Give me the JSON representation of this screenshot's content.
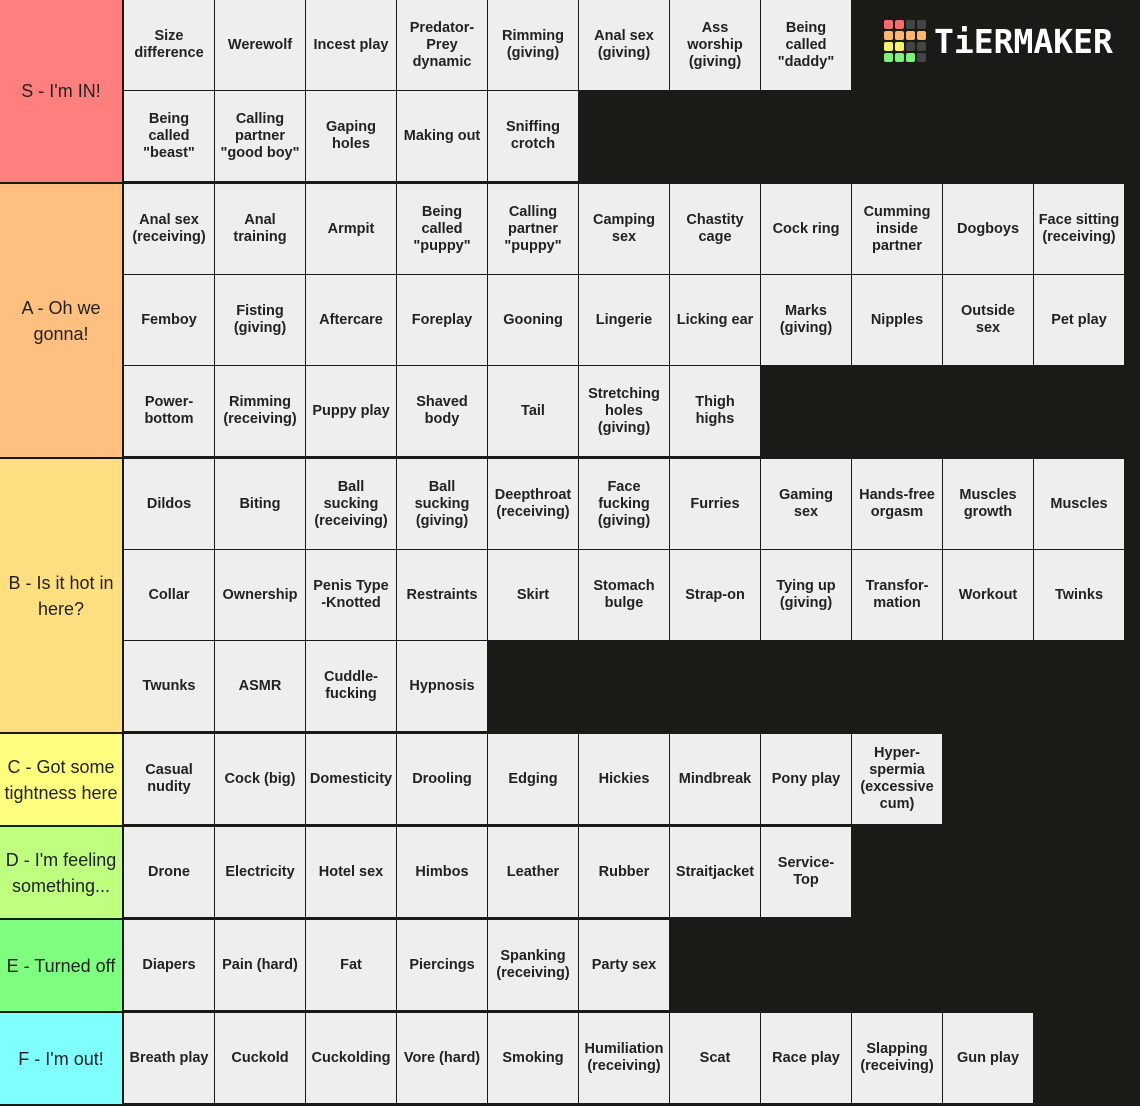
{
  "logo": {
    "text": "TiERMAKER",
    "grid": [
      "#f36b6b",
      "#f36b6b",
      "#444",
      "#444",
      "#fdb56d",
      "#fdb56d",
      "#fdb56d",
      "#fdb56d",
      "#f6f36b",
      "#f6f36b",
      "#444",
      "#444",
      "#7bf27b",
      "#7bf27b",
      "#7bf27b",
      "#444"
    ]
  },
  "tiers": [
    {
      "label": "S - I'm IN!",
      "color": "#ff7f7f",
      "items": [
        "Size\ndifference",
        "Werewolf",
        "Incest play",
        "Predator-\nPrey\ndynamic",
        "Rimming\n(giving)",
        "Anal sex\n(giving)",
        "Ass\nworship\n(giving)",
        "Being\ncalled\n\"daddy\"",
        "Being\ncalled\n\"beast\"",
        "Calling\npartner\n\"good boy\"",
        "Gaping\nholes",
        "Making out",
        "Sniffing\ncrotch"
      ]
    },
    {
      "label": "A - Oh we gonna!",
      "color": "#ffbf7f",
      "items": [
        "Anal sex\n(receiving)",
        "Anal\ntraining",
        "Armpit",
        "Being\ncalled\n\"puppy\"",
        "Calling\npartner\n\"puppy\"",
        "Camping\nsex",
        "Chastity\ncage",
        "Cock ring",
        "Cumming\ninside\npartner",
        "Dogboys",
        "Face sitting\n(receiving)",
        "Femboy",
        "Fisting\n(giving)",
        "Aftercare",
        "Foreplay",
        "Gooning",
        "Lingerie",
        "Licking ear",
        "Marks\n(giving)",
        "Nipples",
        "Outside\nsex",
        "Pet play",
        "Power-\nbottom",
        "Rimming\n(receiving)",
        "Puppy play",
        "Shaved\nbody",
        "Tail",
        "Stretching\nholes\n(giving)",
        "Thigh\nhighs"
      ]
    },
    {
      "label": "B - Is it hot in here?",
      "color": "#ffdf7f",
      "items": [
        "Dildos",
        "Biting",
        "Ball\nsucking\n(receiving)",
        "Ball\nsucking\n(giving)",
        "Deepthroat\n(receiving)",
        "Face\nfucking\n(giving)",
        "Furries",
        "Gaming\nsex",
        "Hands-free\norgasm",
        "Muscles\ngrowth",
        "Muscles",
        "Collar",
        "Ownership",
        "Penis Type\n-Knotted",
        "Restraints",
        "Skirt",
        "Stomach\nbulge",
        "Strap-on",
        "Tying up\n(giving)",
        "Transfor-\nmation",
        "Workout",
        "Twinks",
        "Twunks",
        "ASMR",
        "Cuddle-\nfucking",
        "Hypnosis"
      ]
    },
    {
      "label": "C - Got some tightness here",
      "color": "#ffff7f",
      "items": [
        "Casual\nnudity",
        "Cock (big)",
        "Domesticity",
        "Drooling",
        "Edging",
        "Hickies",
        "Mindbreak",
        "Pony play",
        "Hyper-\nspermia\n(excessive\ncum)"
      ]
    },
    {
      "label": "D - I'm feeling something...",
      "color": "#bfff7f",
      "items": [
        "Drone",
        "Electricity",
        "Hotel sex",
        "Himbos",
        "Leather",
        "Rubber",
        "Straitjacket",
        "Service-\nTop"
      ]
    },
    {
      "label": "E - Turned off",
      "color": "#7fff7f",
      "items": [
        "Diapers",
        "Pain (hard)",
        "Fat",
        "Piercings",
        "Spanking\n(receiving)",
        "Party sex"
      ]
    },
    {
      "label": "F - I'm out!",
      "color": "#7fffff",
      "items": [
        "Breath play",
        "Cuckold",
        "Cuckolding",
        "Vore (hard)",
        "Smoking",
        "Humiliation\n(receiving)",
        "Scat",
        "Race play",
        "Slapping\n(receiving)",
        "Gun play"
      ]
    }
  ]
}
